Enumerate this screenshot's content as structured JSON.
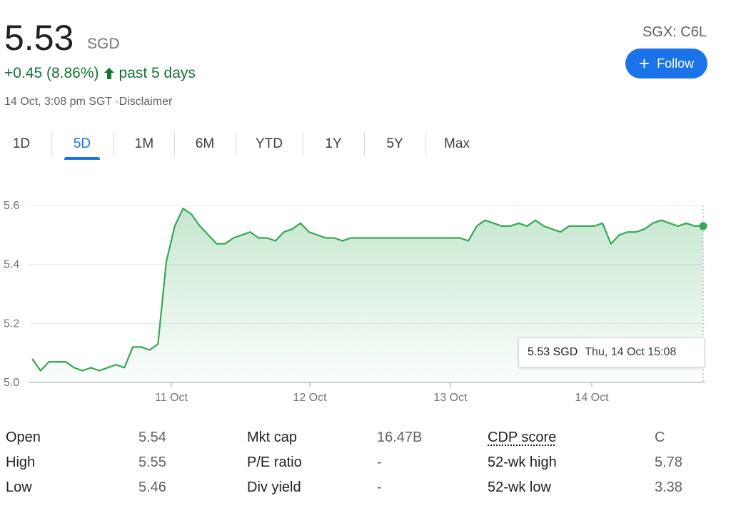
{
  "quote": {
    "price": "5.53",
    "currency": "SGD",
    "change": "+0.45 (8.86%)",
    "period": "past 5 days",
    "timestamp": "14 Oct, 3:08 pm SGT ·Disclaimer",
    "ticker": "SGX: C6L",
    "follow_label": "Follow",
    "positive_color": "#137333",
    "line_color": "#34a853",
    "accent_color": "#1a73e8"
  },
  "range_tabs": [
    "1D",
    "5D",
    "1M",
    "6M",
    "YTD",
    "1Y",
    "5Y",
    "Max"
  ],
  "active_tab": "5D",
  "tooltip": {
    "value": "5.53 SGD",
    "date": "Thu, 14 Oct 15:08"
  },
  "chart_data": {
    "type": "area",
    "x_tick_labels": [
      "11 Oct",
      "12 Oct",
      "13 Oct",
      "14 Oct"
    ],
    "y_tick_labels": [
      "5.6",
      "5.4",
      "5.2",
      "5.0"
    ],
    "ylim": [
      5.0,
      5.6
    ],
    "grid": true,
    "series": [
      {
        "values": [
          5.08,
          5.04,
          5.07,
          5.07,
          5.07,
          5.05,
          5.04,
          5.05,
          5.04,
          5.05,
          5.06,
          5.05,
          5.12,
          5.12,
          5.11,
          5.13,
          5.41,
          5.53,
          5.59,
          5.57,
          5.53,
          5.5,
          5.47,
          5.47,
          5.49,
          5.5,
          5.51,
          5.49,
          5.49,
          5.48,
          5.51,
          5.52,
          5.54,
          5.51,
          5.5,
          5.49,
          5.49,
          5.48,
          5.49,
          5.49,
          5.49,
          5.49,
          5.49,
          5.49,
          5.49,
          5.49,
          5.49,
          5.49,
          5.49,
          5.49,
          5.49,
          5.49,
          5.48,
          5.53,
          5.55,
          5.54,
          5.53,
          5.53,
          5.54,
          5.53,
          5.55,
          5.53,
          5.52,
          5.51,
          5.53,
          5.53,
          5.53,
          5.53,
          5.54,
          5.47,
          5.5,
          5.51,
          5.51,
          5.52,
          5.54,
          5.55,
          5.54,
          5.53,
          5.54,
          5.53,
          5.53
        ]
      }
    ]
  },
  "stats": {
    "col1": [
      {
        "label": "Open",
        "value": "5.54"
      },
      {
        "label": "High",
        "value": "5.55"
      },
      {
        "label": "Low",
        "value": "5.46"
      }
    ],
    "col2": [
      {
        "label": "Mkt cap",
        "value": "16.47B"
      },
      {
        "label": "P/E ratio",
        "value": "-"
      },
      {
        "label": "Div yield",
        "value": "-"
      }
    ],
    "col3": [
      {
        "label": "CDP score",
        "value": "C"
      },
      {
        "label": "52-wk high",
        "value": "5.78"
      },
      {
        "label": "52-wk low",
        "value": "3.38"
      }
    ]
  }
}
